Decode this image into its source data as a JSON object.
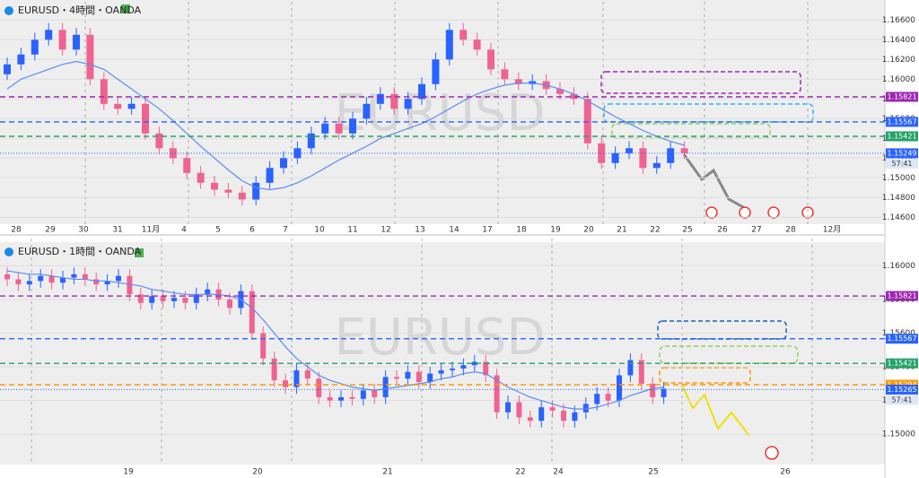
{
  "chart_data": [
    {
      "type": "candlestick",
      "title": "EURUSD・4時間・OANDA",
      "watermark": "EURUSD",
      "x_labels": [
        "28",
        "29",
        "30",
        "31",
        "11月",
        "4",
        "5",
        "6",
        "7",
        "10",
        "11",
        "12",
        "13",
        "14",
        "17",
        "18",
        "19",
        "20",
        "21",
        "22",
        "25",
        "26",
        "27",
        "28",
        "12月"
      ],
      "open": [
        1.1605,
        1.1615,
        1.1625,
        1.164,
        1.165,
        1.163,
        1.1645,
        1.16,
        1.1575,
        1.157,
        1.1575,
        1.1545,
        1.153,
        1.152,
        1.1505,
        1.1495,
        1.1488,
        1.1485,
        1.1478,
        1.1495,
        1.151,
        1.152,
        1.153,
        1.1545,
        1.1555,
        1.1545,
        1.156,
        1.1575,
        1.1585,
        1.157,
        1.158,
        1.1595,
        1.162,
        1.165,
        1.164,
        1.163,
        1.161,
        1.16,
        1.1595,
        1.1598,
        1.159,
        1.1585,
        1.158,
        1.1535,
        1.1515,
        1.1525,
        1.153,
        1.151,
        1.1515,
        1.153
      ],
      "high": [
        1.1622,
        1.1632,
        1.1647,
        1.1657,
        1.1657,
        1.1652,
        1.1652,
        1.1607,
        1.1582,
        1.1582,
        1.1582,
        1.1552,
        1.1537,
        1.1527,
        1.1512,
        1.1502,
        1.1495,
        1.1492,
        1.1502,
        1.1517,
        1.1527,
        1.1537,
        1.1552,
        1.1562,
        1.1562,
        1.1567,
        1.1582,
        1.1592,
        1.1592,
        1.1587,
        1.1602,
        1.1627,
        1.1657,
        1.1657,
        1.1647,
        1.1637,
        1.1617,
        1.1607,
        1.1605,
        1.1605,
        1.1597,
        1.1592,
        1.1587,
        1.1542,
        1.1532,
        1.1537,
        1.1537,
        1.1522,
        1.1537,
        1.1537
      ],
      "low": [
        1.1599,
        1.1609,
        1.1619,
        1.1634,
        1.1624,
        1.1624,
        1.1594,
        1.1569,
        1.1564,
        1.1564,
        1.1539,
        1.1524,
        1.1514,
        1.1499,
        1.1489,
        1.1482,
        1.1479,
        1.1472,
        1.1472,
        1.1489,
        1.1504,
        1.1514,
        1.1524,
        1.1539,
        1.1539,
        1.1539,
        1.1554,
        1.1569,
        1.1564,
        1.1564,
        1.1574,
        1.1589,
        1.1614,
        1.1634,
        1.1624,
        1.1604,
        1.1594,
        1.1589,
        1.1589,
        1.1584,
        1.1579,
        1.1574,
        1.1529,
        1.1509,
        1.1509,
        1.1519,
        1.1504,
        1.1504,
        1.1509,
        1.1519
      ],
      "close": [
        1.1615,
        1.1625,
        1.164,
        1.165,
        1.163,
        1.1645,
        1.16,
        1.1575,
        1.157,
        1.1575,
        1.1545,
        1.153,
        1.152,
        1.1505,
        1.1495,
        1.1488,
        1.1485,
        1.1478,
        1.1495,
        1.151,
        1.152,
        1.153,
        1.1545,
        1.1555,
        1.1545,
        1.156,
        1.1575,
        1.1585,
        1.157,
        1.158,
        1.1595,
        1.162,
        1.165,
        1.164,
        1.163,
        1.161,
        1.16,
        1.1595,
        1.1598,
        1.159,
        1.1585,
        1.158,
        1.1535,
        1.1515,
        1.1525,
        1.153,
        1.151,
        1.1515,
        1.153,
        1.1525
      ],
      "up_color": "#2962ff",
      "down_color": "#f06292",
      "ma": {
        "color": "#5b8def",
        "values": [
          1.159,
          1.16,
          1.1605,
          1.161,
          1.1615,
          1.1618,
          1.1615,
          1.161,
          1.16,
          1.159,
          1.158,
          1.157,
          1.1558,
          1.1545,
          1.1532,
          1.152,
          1.1508,
          1.1497,
          1.149,
          1.1488,
          1.149,
          1.1495,
          1.1502,
          1.151,
          1.1518,
          1.1525,
          1.1532,
          1.154,
          1.1545,
          1.155,
          1.1555,
          1.1562,
          1.157,
          1.1578,
          1.1585,
          1.159,
          1.1594,
          1.1596,
          1.1596,
          1.1594,
          1.159,
          1.1585,
          1.1578,
          1.157,
          1.1562,
          1.1555,
          1.1548,
          1.1542,
          1.1537,
          1.1533
        ]
      },
      "ylim": [
        1.1453,
        1.1673
      ],
      "yticks": [
        {
          "value": 1.146,
          "label": "1.14600"
        },
        {
          "value": 1.148,
          "label": "1.14800"
        },
        {
          "value": 1.15,
          "label": "1.15000"
        },
        {
          "value": 1.152,
          "label": "1.15200"
        },
        {
          "value": 1.154,
          "label": "1.15400"
        },
        {
          "value": 1.156,
          "label": "1.15600"
        },
        {
          "value": 1.158,
          "label": "1.15800"
        },
        {
          "value": 1.16,
          "label": "1.16000"
        },
        {
          "value": 1.162,
          "label": "1.16200"
        },
        {
          "value": 1.164,
          "label": "1.16400"
        },
        {
          "value": 1.166,
          "label": "1.16600"
        }
      ],
      "grid": true,
      "levels": [
        {
          "value": 1.15821,
          "color": "#9c27b0"
        },
        {
          "value": 1.15567,
          "color": "#2962ff"
        },
        {
          "value": 1.15421,
          "color": "#26a269"
        }
      ],
      "last_price": 1.15249,
      "last_price_color": "#2962ff",
      "countdown": "57:41"
    },
    {
      "type": "candlestick",
      "title": "EURUSD・1時間・OANDA",
      "watermark": "EURUSD",
      "x_labels": [
        "19",
        "20",
        "21",
        "22",
        "24",
        "25",
        "26"
      ],
      "open": [
        1.1595,
        1.1592,
        1.1589,
        1.1591,
        1.1594,
        1.159,
        1.1593,
        1.1595,
        1.1592,
        1.1589,
        1.1591,
        1.1594,
        1.1583,
        1.1578,
        1.1582,
        1.1579,
        1.1581,
        1.1578,
        1.1583,
        1.1586,
        1.158,
        1.1575,
        1.1585,
        1.156,
        1.1545,
        1.1532,
        1.1528,
        1.1538,
        1.1533,
        1.1522,
        1.152,
        1.1522,
        1.1521,
        1.1526,
        1.1522,
        1.1534,
        1.1533,
        1.1537,
        1.1531,
        1.1536,
        1.1538,
        1.1539,
        1.1541,
        1.1543,
        1.1535,
        1.1513,
        1.1519,
        1.151,
        1.1508,
        1.1516,
        1.1514,
        1.1508,
        1.1513,
        1.1518,
        1.1524,
        1.152,
        1.1535,
        1.1544,
        1.153,
        1.1522
      ],
      "high": [
        1.1599,
        1.1596,
        1.1595,
        1.1598,
        1.1598,
        1.1597,
        1.1599,
        1.1599,
        1.1596,
        1.1595,
        1.1598,
        1.1598,
        1.1587,
        1.1586,
        1.1586,
        1.1585,
        1.1585,
        1.1587,
        1.159,
        1.159,
        1.1584,
        1.1589,
        1.1589,
        1.1564,
        1.1549,
        1.1536,
        1.1542,
        1.1542,
        1.1537,
        1.1526,
        1.1526,
        1.1526,
        1.153,
        1.153,
        1.1538,
        1.1538,
        1.1541,
        1.1541,
        1.154,
        1.1542,
        1.1543,
        1.1545,
        1.1547,
        1.1547,
        1.1539,
        1.1523,
        1.1523,
        1.1514,
        1.152,
        1.152,
        1.1518,
        1.1517,
        1.1522,
        1.1528,
        1.1528,
        1.1539,
        1.1548,
        1.1548,
        1.1534,
        1.1531
      ],
      "low": [
        1.1588,
        1.1585,
        1.1585,
        1.1587,
        1.1586,
        1.1586,
        1.1589,
        1.1588,
        1.1585,
        1.1585,
        1.1587,
        1.1579,
        1.1574,
        1.1574,
        1.1575,
        1.1575,
        1.1574,
        1.1574,
        1.1579,
        1.1576,
        1.1571,
        1.1571,
        1.1556,
        1.1541,
        1.1528,
        1.1524,
        1.1524,
        1.1529,
        1.1518,
        1.1516,
        1.1516,
        1.1517,
        1.1517,
        1.1518,
        1.1518,
        1.1529,
        1.1529,
        1.1527,
        1.1527,
        1.1532,
        1.1534,
        1.1535,
        1.1537,
        1.1531,
        1.1509,
        1.1509,
        1.1506,
        1.1504,
        1.1504,
        1.151,
        1.1504,
        1.1504,
        1.1509,
        1.1514,
        1.1516,
        1.1516,
        1.1531,
        1.1526,
        1.1518,
        1.1518
      ],
      "close": [
        1.1592,
        1.1589,
        1.1591,
        1.1594,
        1.159,
        1.1593,
        1.1595,
        1.1592,
        1.1589,
        1.1591,
        1.1594,
        1.1583,
        1.1578,
        1.1582,
        1.1579,
        1.1581,
        1.1578,
        1.1583,
        1.1586,
        1.158,
        1.1575,
        1.1585,
        1.156,
        1.1545,
        1.1532,
        1.1528,
        1.1538,
        1.1533,
        1.1522,
        1.152,
        1.1522,
        1.1521,
        1.1526,
        1.1522,
        1.1534,
        1.1533,
        1.1537,
        1.1531,
        1.1536,
        1.1538,
        1.1539,
        1.1541,
        1.1543,
        1.1535,
        1.1513,
        1.1519,
        1.151,
        1.1508,
        1.1516,
        1.1514,
        1.1508,
        1.1513,
        1.1518,
        1.1524,
        1.152,
        1.1535,
        1.1544,
        1.153,
        1.1522,
        1.1527
      ],
      "up_color": "#2962ff",
      "down_color": "#f06292",
      "ma": {
        "color": "#5b8def",
        "values": [
          1.1597,
          1.1596,
          1.1595,
          1.1595,
          1.1594,
          1.1593,
          1.1592,
          1.1592,
          1.1591,
          1.1591,
          1.159,
          1.1589,
          1.1588,
          1.1586,
          1.1585,
          1.1584,
          1.1583,
          1.1583,
          1.1583,
          1.1583,
          1.1582,
          1.158,
          1.1575,
          1.1568,
          1.156,
          1.1552,
          1.1545,
          1.154,
          1.1535,
          1.1532,
          1.153,
          1.1528,
          1.1527,
          1.1526,
          1.1527,
          1.1528,
          1.1529,
          1.153,
          1.1531,
          1.1533,
          1.1534,
          1.1536,
          1.1537,
          1.1536,
          1.1532,
          1.1528,
          1.1525,
          1.1522,
          1.152,
          1.1518,
          1.1516,
          1.1515,
          1.1515,
          1.1516,
          1.1518,
          1.152,
          1.1523,
          1.1525,
          1.1527,
          1.1528
        ]
      },
      "ylim": [
        1.1482,
        1.1613
      ],
      "yticks": [
        {
          "value": 1.15,
          "label": "1.15000"
        },
        {
          "value": 1.152,
          "label": "1.15200"
        },
        {
          "value": 1.154,
          "label": "1.15400"
        },
        {
          "value": 1.156,
          "label": "1.15600"
        },
        {
          "value": 1.158,
          "label": "1.15800"
        },
        {
          "value": 1.16,
          "label": "1.16000"
        }
      ],
      "grid": true,
      "levels": [
        {
          "value": 1.15821,
          "color": "#9c27b0"
        },
        {
          "value": 1.15567,
          "color": "#2962ff"
        },
        {
          "value": 1.15421,
          "color": "#26a269"
        },
        {
          "value": 1.15294,
          "color": "#ff9800"
        }
      ],
      "last_price": 1.15265,
      "last_price_color": "#2962ff",
      "countdown": "57:41"
    }
  ]
}
